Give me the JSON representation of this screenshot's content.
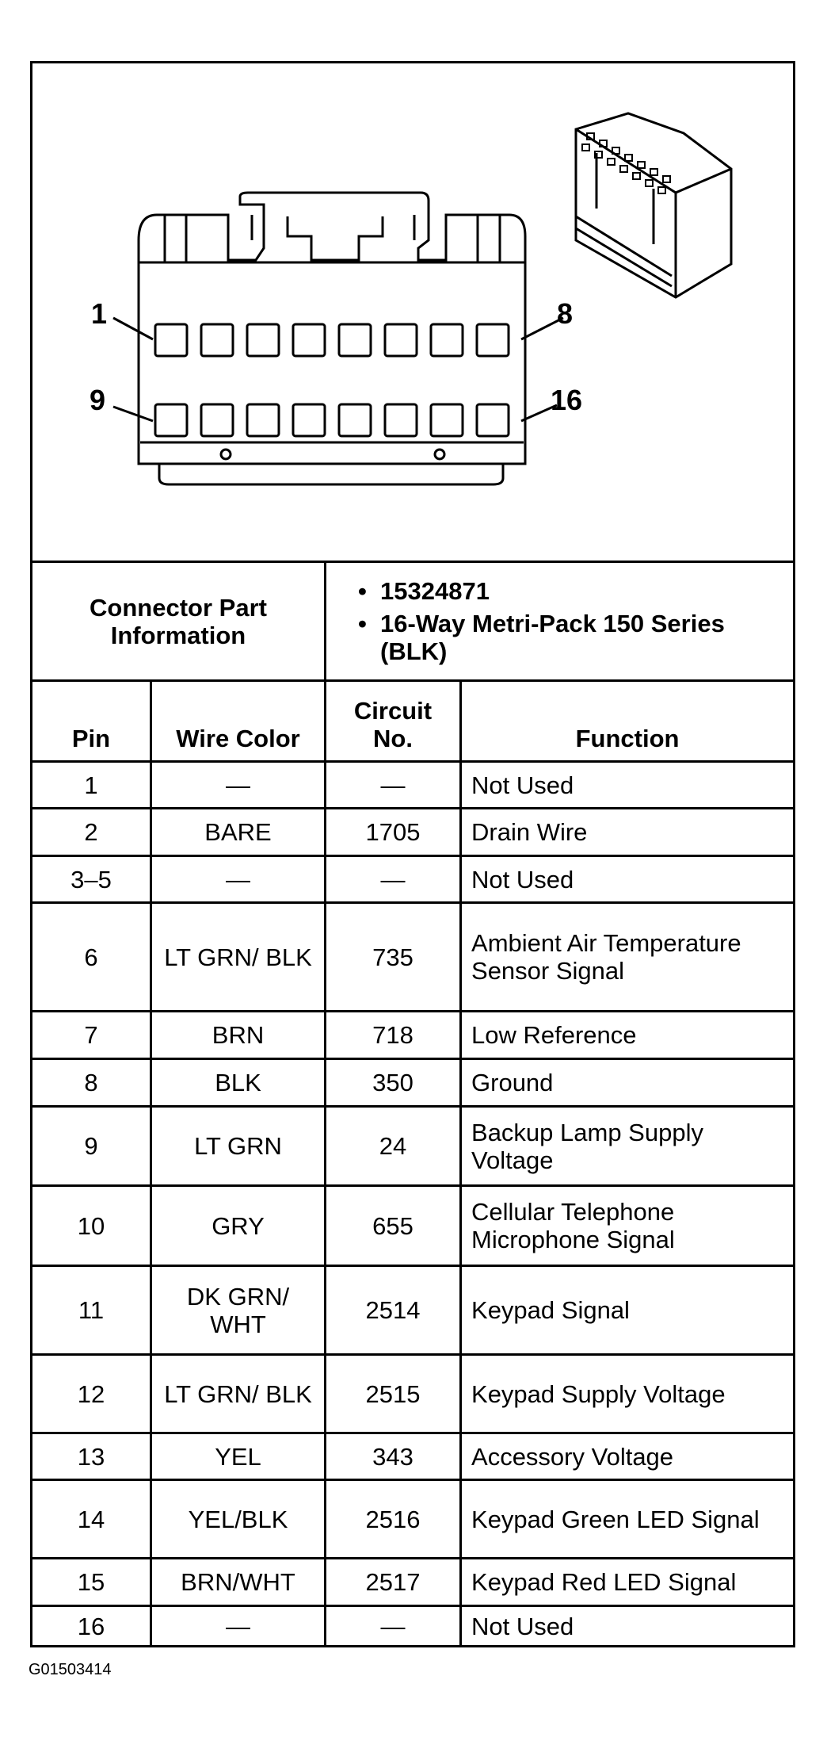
{
  "diagram": {
    "pin_labels": {
      "top_left": "1",
      "top_right": "8",
      "bottom_left": "9",
      "bottom_right": "16"
    }
  },
  "connector_info": {
    "label": "Connector Part Information",
    "items": [
      "15324871",
      "16-Way Metri-Pack 150 Series (BLK)"
    ]
  },
  "columns": [
    "Pin",
    "Wire Color",
    "Circuit No.",
    "Function"
  ],
  "rows": [
    {
      "pin": "1",
      "wire": "—",
      "circuit": "—",
      "function": "Not Used"
    },
    {
      "pin": "2",
      "wire": "BARE",
      "circuit": "1705",
      "function": "Drain Wire"
    },
    {
      "pin": "3–5",
      "wire": "—",
      "circuit": "—",
      "function": "Not Used"
    },
    {
      "pin": "6",
      "wire": "LT GRN/ BLK",
      "circuit": "735",
      "function": "Ambient Air Temperature Sensor Signal"
    },
    {
      "pin": "7",
      "wire": "BRN",
      "circuit": "718",
      "function": "Low Reference"
    },
    {
      "pin": "8",
      "wire": "BLK",
      "circuit": "350",
      "function": "Ground"
    },
    {
      "pin": "9",
      "wire": "LT GRN",
      "circuit": "24",
      "function": "Backup Lamp Supply Voltage"
    },
    {
      "pin": "10",
      "wire": "GRY",
      "circuit": "655",
      "function": "Cellular Telephone Microphone Signal"
    },
    {
      "pin": "11",
      "wire": "DK GRN/ WHT",
      "circuit": "2514",
      "function": "Keypad Signal"
    },
    {
      "pin": "12",
      "wire": "LT GRN/ BLK",
      "circuit": "2515",
      "function": "Keypad Supply Voltage"
    },
    {
      "pin": "13",
      "wire": "YEL",
      "circuit": "343",
      "function": "Accessory Voltage"
    },
    {
      "pin": "14",
      "wire": "YEL/BLK",
      "circuit": "2516",
      "function": "Keypad Green LED Signal"
    },
    {
      "pin": "15",
      "wire": "BRN/WHT",
      "circuit": "2517",
      "function": "Keypad Red LED Signal"
    },
    {
      "pin": "16",
      "wire": "—",
      "circuit": "—",
      "function": "Not Used"
    }
  ],
  "caption": "G01503414"
}
